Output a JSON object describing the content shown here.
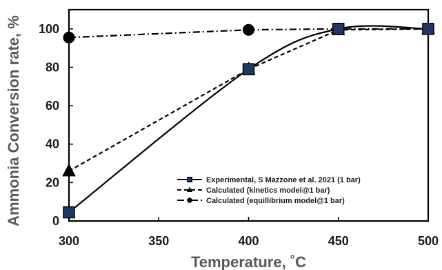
{
  "chart_data": {
    "type": "line",
    "xlabel": "Temperature, ˚C",
    "ylabel": "Ammonia Conversion rate, %",
    "xlim": [
      300,
      500
    ],
    "ylim": [
      0,
      110
    ],
    "x_ticks": [
      300,
      350,
      400,
      450,
      500
    ],
    "y_ticks": [
      0,
      20,
      40,
      60,
      80,
      100
    ],
    "grid": false,
    "legend_position": "bottom-right",
    "series": [
      {
        "name": "Experimental, S Mazzone et al. 2021 (1 bar)",
        "style": "solid",
        "marker": "square",
        "color": "#000000",
        "marker_fill": "#1f3864",
        "x": [
          300,
          400,
          450,
          500
        ],
        "y": [
          4.5,
          79,
          100,
          100
        ],
        "smooth": true
      },
      {
        "name": "Calculated (kinetics model@1 bar)",
        "style": "dashed",
        "marker": "triangle",
        "color": "#000000",
        "marker_fill": "#000000",
        "x": [
          300,
          400,
          450,
          500
        ],
        "y": [
          26,
          79,
          99.5,
          100
        ],
        "smooth": false
      },
      {
        "name": "Calculated (equillibrium model@1 bar)",
        "style": "dashdot",
        "marker": "circle",
        "color": "#000000",
        "marker_fill": "#000000",
        "x": [
          300,
          400,
          450,
          500
        ],
        "y": [
          95.5,
          99.5,
          100,
          100
        ],
        "smooth": false
      }
    ]
  }
}
